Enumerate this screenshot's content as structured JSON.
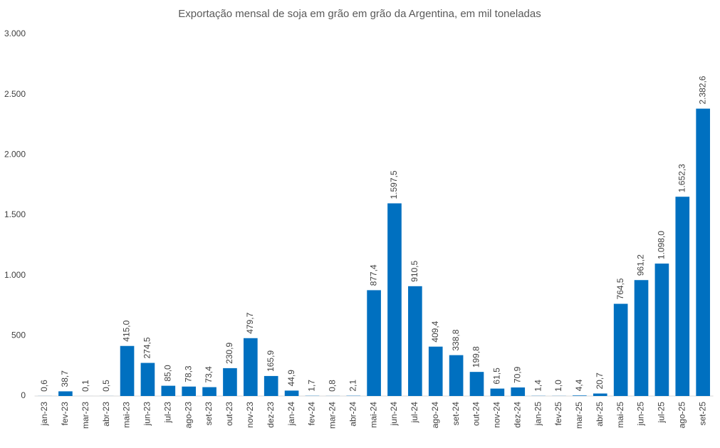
{
  "chart_data": {
    "type": "bar",
    "title": "Exportação mensal de soja em grão em grão da Argentina, em mil toneladas",
    "categories": [
      "jan-23",
      "fev-23",
      "mar-23",
      "abr-23",
      "mai-23",
      "jun-23",
      "jul-23",
      "ago-23",
      "set-23",
      "out-23",
      "nov-23",
      "dez-23",
      "jan-24",
      "fev-24",
      "mar-24",
      "abr-24",
      "mai-24",
      "jun-24",
      "jul-24",
      "ago-24",
      "set-24",
      "out-24",
      "nov-24",
      "dez-24",
      "jan-25",
      "fev-25",
      "mar-25",
      "abr-25",
      "mai-25",
      "jun-25",
      "jul-25",
      "ago-25",
      "set-25"
    ],
    "values": [
      0.6,
      38.7,
      0.1,
      0.5,
      415.0,
      274.5,
      85.0,
      78.3,
      73.4,
      230.9,
      479.7,
      165.9,
      44.9,
      1.7,
      0.8,
      2.1,
      877.4,
      1597.5,
      910.5,
      409.4,
      338.8,
      199.8,
      61.5,
      70.9,
      1.4,
      1.0,
      4.4,
      20.7,
      764.5,
      961.2,
      1098.0,
      1652.3,
      2382.6
    ],
    "value_labels": [
      "0,6",
      "38,7",
      "0,1",
      "0,5",
      "415,0",
      "274,5",
      "85,0",
      "78,3",
      "73,4",
      "230,9",
      "479,7",
      "165,9",
      "44,9",
      "1,7",
      "0,8",
      "2,1",
      "877,4",
      "1.597,5",
      "910,5",
      "409,4",
      "338,8",
      "199,8",
      "61,5",
      "70,9",
      "1,4",
      "1,0",
      "4,4",
      "20,7",
      "764,5",
      "961,2",
      "1.098,0",
      "1.652,3",
      "2.382,6"
    ],
    "color": "#0070c0",
    "ylim": [
      0,
      3000
    ],
    "yticks": [
      0,
      500,
      {
        "value": 1000,
        "label": "1.000"
      },
      {
        "value": 1500,
        "label": "1.500"
      },
      {
        "value": 2000,
        "label": "2.000"
      },
      {
        "value": 2500,
        "label": "2.500"
      },
      {
        "value": 3000,
        "label": "3.000"
      }
    ],
    "grid": false
  }
}
